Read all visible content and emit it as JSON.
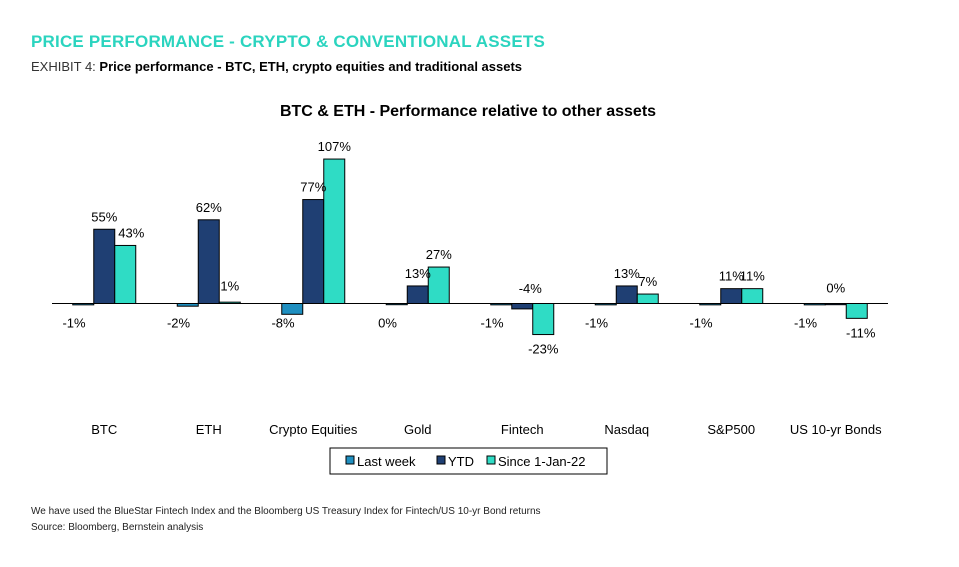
{
  "header": {
    "section_title": "PRICE PERFORMANCE - CRYPTO & CONVENTIONAL ASSETS",
    "exhibit_label": "EXHIBIT 4:",
    "exhibit_title": "Price performance - BTC, ETH, crypto equities and traditional assets"
  },
  "chart_data": {
    "type": "bar",
    "title": "BTC & ETH - Performance relative to other assets",
    "xlabel": "",
    "ylabel": "",
    "ylim": [
      -30,
      110
    ],
    "categories": [
      "BTC",
      "ETH",
      "Crypto Equities",
      "Gold",
      "Fintech",
      "Nasdaq",
      "S&P500",
      "US 10-yr Bonds"
    ],
    "series": [
      {
        "name": "Last week",
        "color": "#1f8fc0",
        "values": [
          -1,
          -2,
          -8,
          0,
          -1,
          -1,
          -1,
          -1
        ],
        "labels": [
          "-1%",
          "-2%",
          "-8%",
          "0%",
          "-1%",
          "-1%",
          "-1%",
          "-1%"
        ]
      },
      {
        "name": "YTD",
        "color": "#1f3f73",
        "values": [
          55,
          62,
          77,
          13,
          -4,
          13,
          11,
          0
        ],
        "labels": [
          "55%",
          "62%",
          "77%",
          "13%",
          "-4%",
          "13%",
          "11%",
          "0%"
        ]
      },
      {
        "name": "Since 1-Jan-22",
        "color": "#2fdcc5",
        "values": [
          43,
          1,
          107,
          27,
          -23,
          7,
          11,
          -11
        ],
        "labels": [
          "43%",
          "1%",
          "107%",
          "27%",
          "-23%",
          "7%",
          "11%",
          "-11%"
        ]
      }
    ],
    "grid": false,
    "legend_position": "bottom"
  },
  "footer": {
    "note": "We have used the BlueStar Fintech Index and the Bloomberg US Treasury Index for Fintech/US 10-yr Bond returns",
    "source": "Source: Bloomberg, Bernstein analysis"
  }
}
